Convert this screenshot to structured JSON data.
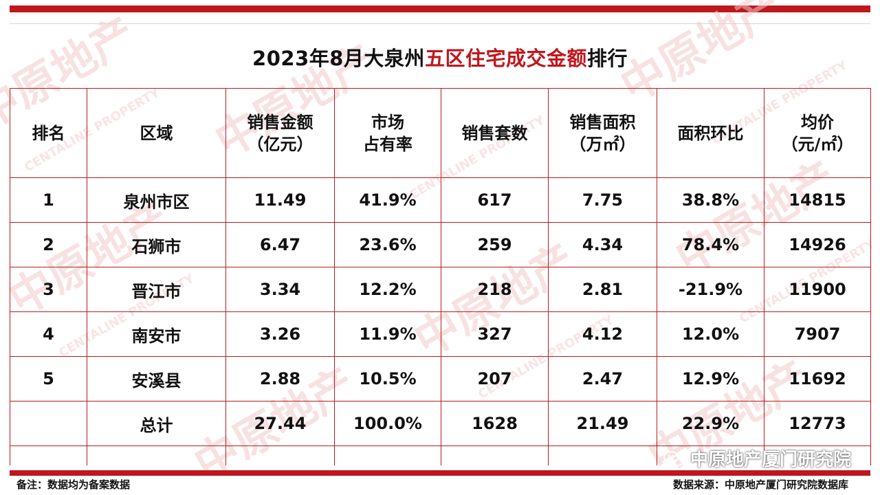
{
  "title": {
    "prefix": "2023年8月大泉州",
    "highlight": "五区住宅成交金额",
    "suffix": "排行"
  },
  "colors": {
    "accent": "#c0161d"
  },
  "table": {
    "headers": {
      "rank": "排名",
      "region": "区域",
      "amount_line1": "销售金额",
      "amount_line2": "（亿元）",
      "share_line1": "市场",
      "share_line2": "占有率",
      "units": "销售套数",
      "area_line1": "销售面积",
      "area_line2": "（万㎡）",
      "mom": "面积环比",
      "price_line1": "均价",
      "price_line2": "（元/㎡）"
    },
    "rows": [
      {
        "rank": "1",
        "region": "泉州市区",
        "amount": "11.49",
        "share": "41.9%",
        "units": "617",
        "area": "7.75",
        "mom": "38.8%",
        "price": "14815"
      },
      {
        "rank": "2",
        "region": "石狮市",
        "amount": "6.47",
        "share": "23.6%",
        "units": "259",
        "area": "4.34",
        "mom": "78.4%",
        "price": "14926"
      },
      {
        "rank": "3",
        "region": "晋江市",
        "amount": "3.34",
        "share": "12.2%",
        "units": "218",
        "area": "2.81",
        "mom": "-21.9%",
        "price": "11900"
      },
      {
        "rank": "4",
        "region": "南安市",
        "amount": "3.26",
        "share": "11.9%",
        "units": "327",
        "area": "4.12",
        "mom": "12.0%",
        "price": "7907"
      },
      {
        "rank": "5",
        "region": "安溪县",
        "amount": "2.88",
        "share": "10.5%",
        "units": "207",
        "area": "2.47",
        "mom": "12.9%",
        "price": "11692"
      }
    ],
    "total": {
      "rank": "",
      "region": "总计",
      "amount": "27.44",
      "share": "100.0%",
      "units": "1628",
      "area": "21.49",
      "mom": "22.9%",
      "price": "12773"
    }
  },
  "footer": {
    "note": "备注：数据均为备案数据",
    "source": "数据来源：中原地产厦门研究院数据库"
  },
  "wechat": {
    "account": "中原地产厦门研究院",
    "icon": "wechat-icon"
  },
  "watermark": {
    "text_cn": "中原地产",
    "text_en": "CENTALINE PROPERTY"
  }
}
